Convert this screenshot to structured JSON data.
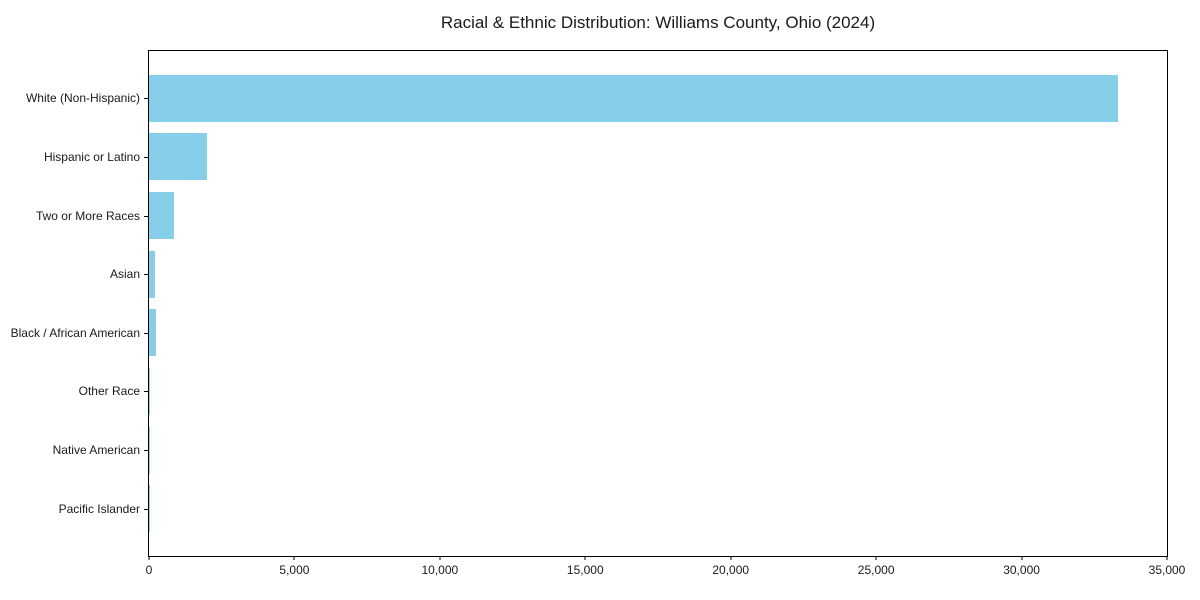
{
  "figure": {
    "background": "#ffffff"
  },
  "chart_data": {
    "type": "bar",
    "orientation": "horizontal",
    "title": "Racial & Ethnic Distribution: Williams County, Ohio (2024)",
    "categories": [
      "White (Non-Hispanic)",
      "Hispanic or Latino",
      "Two or More Races",
      "Asian",
      "Black / African American",
      "Other Race",
      "Native American",
      "Pacific Islander"
    ],
    "values": [
      33300,
      2000,
      860,
      210,
      240,
      50,
      40,
      10
    ],
    "xlabel": "",
    "ylabel": "",
    "xlim": [
      0,
      35000
    ],
    "x_ticks": [
      0,
      5000,
      10000,
      15000,
      20000,
      25000,
      30000,
      35000
    ],
    "x_tick_labels": [
      "0",
      "5,000",
      "10,000",
      "15,000",
      "20,000",
      "25,000",
      "30,000",
      "35,000"
    ],
    "bar_color": "#87CEEB",
    "axis_color": "#000000",
    "text_color": "#1a1a1a",
    "grid": false,
    "legend": null
  }
}
